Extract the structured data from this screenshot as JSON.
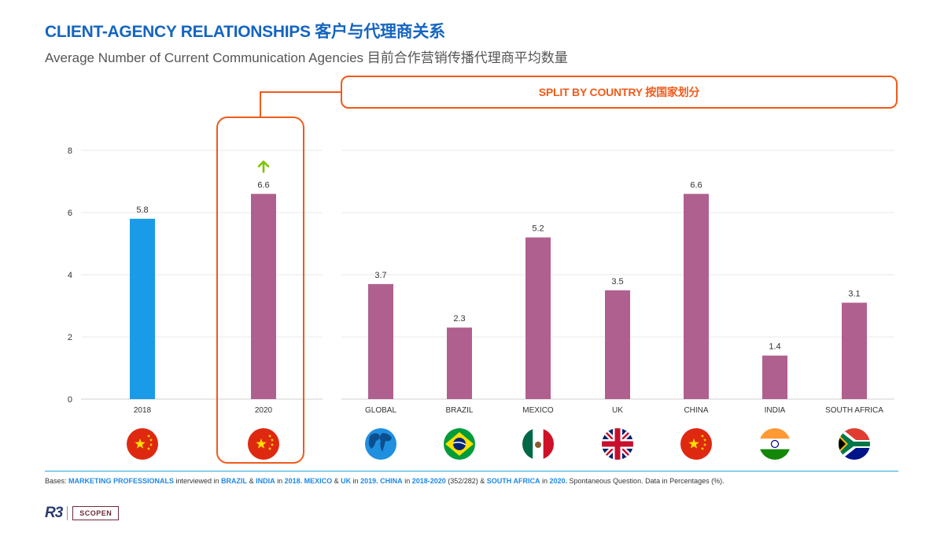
{
  "header": {
    "title": "CLIENT-AGENCY RELATIONSHIPS 客户与代理商关系",
    "subtitle": "Average Number of Current Communication Agencies 目前合作营销传播代理商平均数量"
  },
  "split_label": "SPLIT BY COUNTRY 按国家划分",
  "colors": {
    "blue_bar": "#1a9be8",
    "purple_bar": "#b0608e",
    "accent": "#f05a1a",
    "up_arrow": "#7cc300"
  },
  "chart_data": [
    {
      "type": "bar",
      "categories": [
        "2018",
        "2020"
      ],
      "values": [
        5.8,
        6.6
      ],
      "bar_colors": [
        "blue_bar",
        "purple_bar"
      ],
      "flags": [
        "china-flag-icon",
        "china-flag-icon"
      ],
      "ylim": [
        0,
        8
      ],
      "yticks": [
        0,
        2,
        4,
        6,
        8
      ],
      "annotations": [
        "",
        "up-arrow-icon"
      ],
      "grid": true
    },
    {
      "type": "bar",
      "categories": [
        "GLOBAL",
        "BRAZIL",
        "MEXICO",
        "UK",
        "CHINA",
        "INDIA",
        "SOUTH AFRICA"
      ],
      "values": [
        3.7,
        2.3,
        5.2,
        3.5,
        6.6,
        1.4,
        3.1
      ],
      "flags": [
        "globe-icon",
        "brazil-flag-icon",
        "mexico-flag-icon",
        "uk-flag-icon",
        "china-flag-icon",
        "india-flag-icon",
        "south-africa-flag-icon"
      ],
      "ylim": [
        0,
        8
      ],
      "grid": true
    }
  ],
  "footnote": [
    {
      "t": "Bases: ",
      "hl": false
    },
    {
      "t": "MARKETING PROFESSIONALS",
      "hl": true
    },
    {
      "t": " interviewed in ",
      "hl": false
    },
    {
      "t": "BRAZIL",
      "hl": true
    },
    {
      "t": " & ",
      "hl": false
    },
    {
      "t": "INDIA",
      "hl": true
    },
    {
      "t": " in ",
      "hl": false
    },
    {
      "t": "2018. MEXICO",
      "hl": true
    },
    {
      "t": " & ",
      "hl": false
    },
    {
      "t": "UK",
      "hl": true
    },
    {
      "t": " in ",
      "hl": false
    },
    {
      "t": "2019. CHINA",
      "hl": true
    },
    {
      "t": " in ",
      "hl": false
    },
    {
      "t": "2018-2020",
      "hl": true
    },
    {
      "t": " (352/282) & ",
      "hl": false
    },
    {
      "t": "SOUTH AFRICA",
      "hl": true
    },
    {
      "t": " in ",
      "hl": false
    },
    {
      "t": "2020.",
      "hl": true
    },
    {
      "t": " Spontaneous Question. Data in Percentages (%).",
      "hl": false
    }
  ],
  "logos": {
    "r3": "R3",
    "scopen": "SCOPEN"
  }
}
